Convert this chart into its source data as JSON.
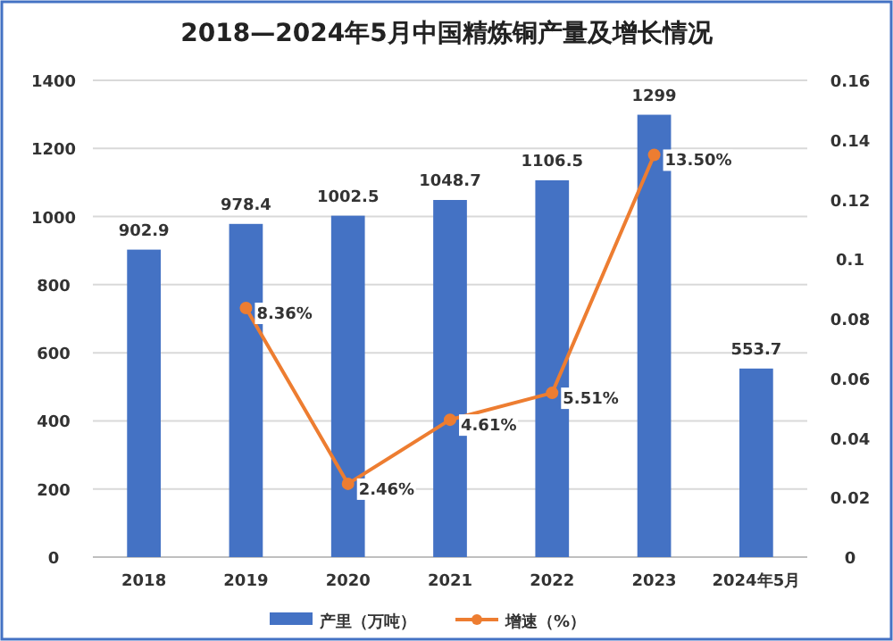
{
  "chart_data": {
    "type": "bar",
    "title": "2018—2024年5月中国精炼铜产量及增长情况",
    "categories": [
      "2018",
      "2019",
      "2020",
      "2021",
      "2022",
      "2023",
      "2024年5月"
    ],
    "series": [
      {
        "name": "产里（万吨）",
        "color": "#4472c4",
        "values": [
          902.9,
          978.4,
          1002.5,
          1048.7,
          1106.5,
          1299,
          553.7
        ],
        "value_labels": [
          "902.9",
          "978.4",
          "1002.5",
          "1048.7",
          "1106.5",
          "1299",
          "553.7"
        ]
      },
      {
        "name": "增速（%）",
        "type": "line",
        "axis": "y2",
        "color": "#ed7d31",
        "marker": "circle",
        "values": [
          null,
          0.0836,
          0.0246,
          0.0461,
          0.0551,
          0.135,
          null
        ],
        "value_labels": [
          null,
          "8.36%",
          "2.46%",
          "4.61%",
          "5.51%",
          "13.50%",
          null
        ]
      }
    ],
    "ylim": [
      0,
      1400
    ],
    "yticks": [
      0,
      200,
      400,
      600,
      800,
      1000,
      1200,
      1400
    ],
    "y2lim": [
      0,
      0.16
    ],
    "y2ticks": [
      0,
      0.02,
      0.04,
      0.06,
      0.08,
      0.1,
      0.12,
      0.14,
      0.16
    ],
    "grid": "y",
    "legend": "bottom"
  }
}
